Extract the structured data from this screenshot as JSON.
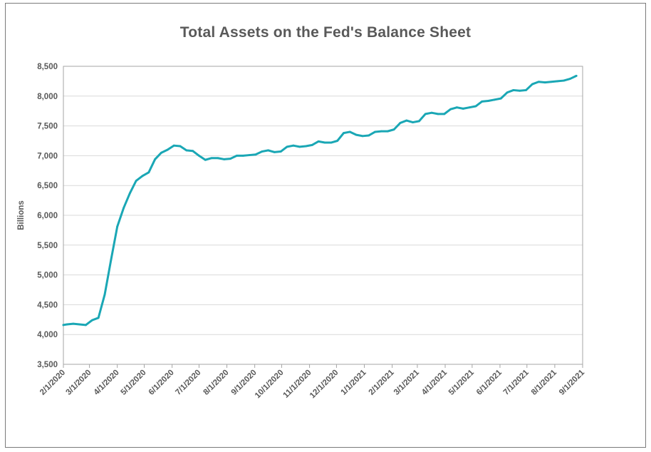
{
  "chart_data": {
    "type": "line",
    "title": "Total Assets on the Fed's Balance Sheet",
    "xlabel": "",
    "ylabel": "Billions",
    "ylim": [
      3500,
      8500
    ],
    "yticks": [
      "3,500",
      "4,000",
      "4,500",
      "5,000",
      "5,500",
      "6,000",
      "6,500",
      "7,000",
      "7,500",
      "8,000",
      "8,500"
    ],
    "ytick_values": [
      3500,
      4000,
      4500,
      5000,
      5500,
      6000,
      6500,
      7000,
      7500,
      8000,
      8500
    ],
    "xlim": [
      "2020-02-01",
      "2021-09-01"
    ],
    "xticks": [
      "2/1/2020",
      "3/1/2020",
      "4/1/2020",
      "5/1/2020",
      "6/1/2020",
      "7/1/2020",
      "8/1/2020",
      "9/1/2020",
      "10/1/2020",
      "11/1/2020",
      "12/1/2020",
      "1/1/2021",
      "2/1/2021",
      "3/1/2021",
      "4/1/2021",
      "5/1/2021",
      "6/1/2021",
      "7/1/2021",
      "8/1/2021",
      "9/1/2021"
    ],
    "xtick_dates": [
      "2020-02-01",
      "2020-03-01",
      "2020-04-01",
      "2020-05-01",
      "2020-06-01",
      "2020-07-01",
      "2020-08-01",
      "2020-09-01",
      "2020-10-01",
      "2020-11-01",
      "2020-12-01",
      "2021-01-01",
      "2021-02-01",
      "2021-03-01",
      "2021-04-01",
      "2021-05-01",
      "2021-06-01",
      "2021-07-01",
      "2021-08-01",
      "2021-09-01"
    ],
    "grid": true,
    "line_color": "#1aa7b5",
    "series": [
      {
        "x": [
          "2020-02-01",
          "2020-02-05",
          "2020-02-12",
          "2020-02-19",
          "2020-02-26",
          "2020-03-04",
          "2020-03-11",
          "2020-03-18",
          "2020-03-25",
          "2020-04-01",
          "2020-04-08",
          "2020-04-15",
          "2020-04-22",
          "2020-04-29",
          "2020-05-06",
          "2020-05-13",
          "2020-05-20",
          "2020-05-27",
          "2020-06-03",
          "2020-06-10",
          "2020-06-17",
          "2020-06-24",
          "2020-07-01",
          "2020-07-08",
          "2020-07-15",
          "2020-07-22",
          "2020-07-29",
          "2020-08-05",
          "2020-08-12",
          "2020-08-19",
          "2020-08-26",
          "2020-09-02",
          "2020-09-09",
          "2020-09-16",
          "2020-09-23",
          "2020-09-30",
          "2020-10-07",
          "2020-10-14",
          "2020-10-21",
          "2020-10-28",
          "2020-11-04",
          "2020-11-11",
          "2020-11-18",
          "2020-11-25",
          "2020-12-02",
          "2020-12-09",
          "2020-12-16",
          "2020-12-23",
          "2020-12-30",
          "2021-01-06",
          "2021-01-13",
          "2021-01-20",
          "2021-01-27",
          "2021-02-03",
          "2021-02-10",
          "2021-02-17",
          "2021-02-24",
          "2021-03-03",
          "2021-03-10",
          "2021-03-17",
          "2021-03-24",
          "2021-03-31",
          "2021-04-07",
          "2021-04-14",
          "2021-04-21",
          "2021-04-28",
          "2021-05-05",
          "2021-05-12",
          "2021-05-19",
          "2021-05-26",
          "2021-06-02",
          "2021-06-09",
          "2021-06-16",
          "2021-06-23",
          "2021-06-30",
          "2021-07-07",
          "2021-07-14",
          "2021-07-21",
          "2021-07-28",
          "2021-08-04",
          "2021-08-11",
          "2021-08-18",
          "2021-08-25"
        ],
        "y": [
          4160,
          4170,
          4180,
          4170,
          4160,
          4240,
          4280,
          4670,
          5250,
          5810,
          6120,
          6370,
          6580,
          6660,
          6720,
          6940,
          7050,
          7100,
          7170,
          7160,
          7090,
          7080,
          7000,
          6930,
          6960,
          6960,
          6940,
          6950,
          7000,
          7000,
          7010,
          7020,
          7070,
          7090,
          7060,
          7070,
          7150,
          7170,
          7150,
          7160,
          7180,
          7240,
          7220,
          7220,
          7250,
          7380,
          7400,
          7350,
          7330,
          7340,
          7400,
          7410,
          7410,
          7440,
          7550,
          7590,
          7560,
          7580,
          7700,
          7720,
          7700,
          7700,
          7780,
          7810,
          7790,
          7810,
          7830,
          7910,
          7920,
          7940,
          7960,
          8060,
          8100,
          8090,
          8100,
          8200,
          8240,
          8230,
          8240,
          8250,
          8260,
          8290,
          8340
        ]
      }
    ]
  }
}
